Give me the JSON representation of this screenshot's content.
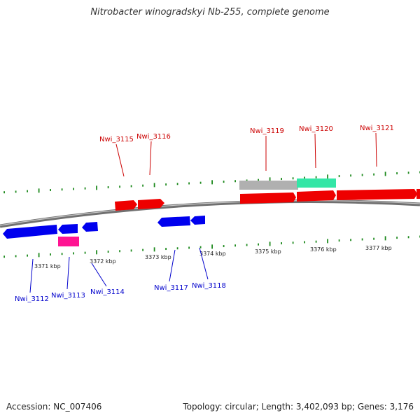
{
  "title": "Nitrobacter winogradskyi Nb-255, complete genome",
  "footer": {
    "accession": "Accession: NC_007406",
    "summary": "Topology: circular; Length: 3,402,093 bp; Genes: 3,176"
  },
  "colors": {
    "forward_gene": "#ff0000",
    "reverse_gene": "#0000ee",
    "rna_gene": "#ff1493",
    "gray_feature": "#b0b0b0",
    "green_feature": "#33e6a6",
    "tick": "#1e8a1e",
    "backbone": "#808080",
    "forward_label": "#cc0000",
    "reverse_label": "#0000cc"
  },
  "tick_labels": [
    "3371 kbp",
    "3372 kbp",
    "3373 kbp",
    "3374 kbp",
    "3375 kbp",
    "3376 kbp",
    "3377 kbp"
  ],
  "forward_genes": [
    "Nwi_3115",
    "Nwi_3116",
    "Nwi_3119",
    "Nwi_3120",
    "Nwi_3121"
  ],
  "reverse_genes": [
    "Nwi_3112",
    "Nwi_3113",
    "Nwi_3114",
    "Nwi_3117",
    "Nwi_3118"
  ]
}
